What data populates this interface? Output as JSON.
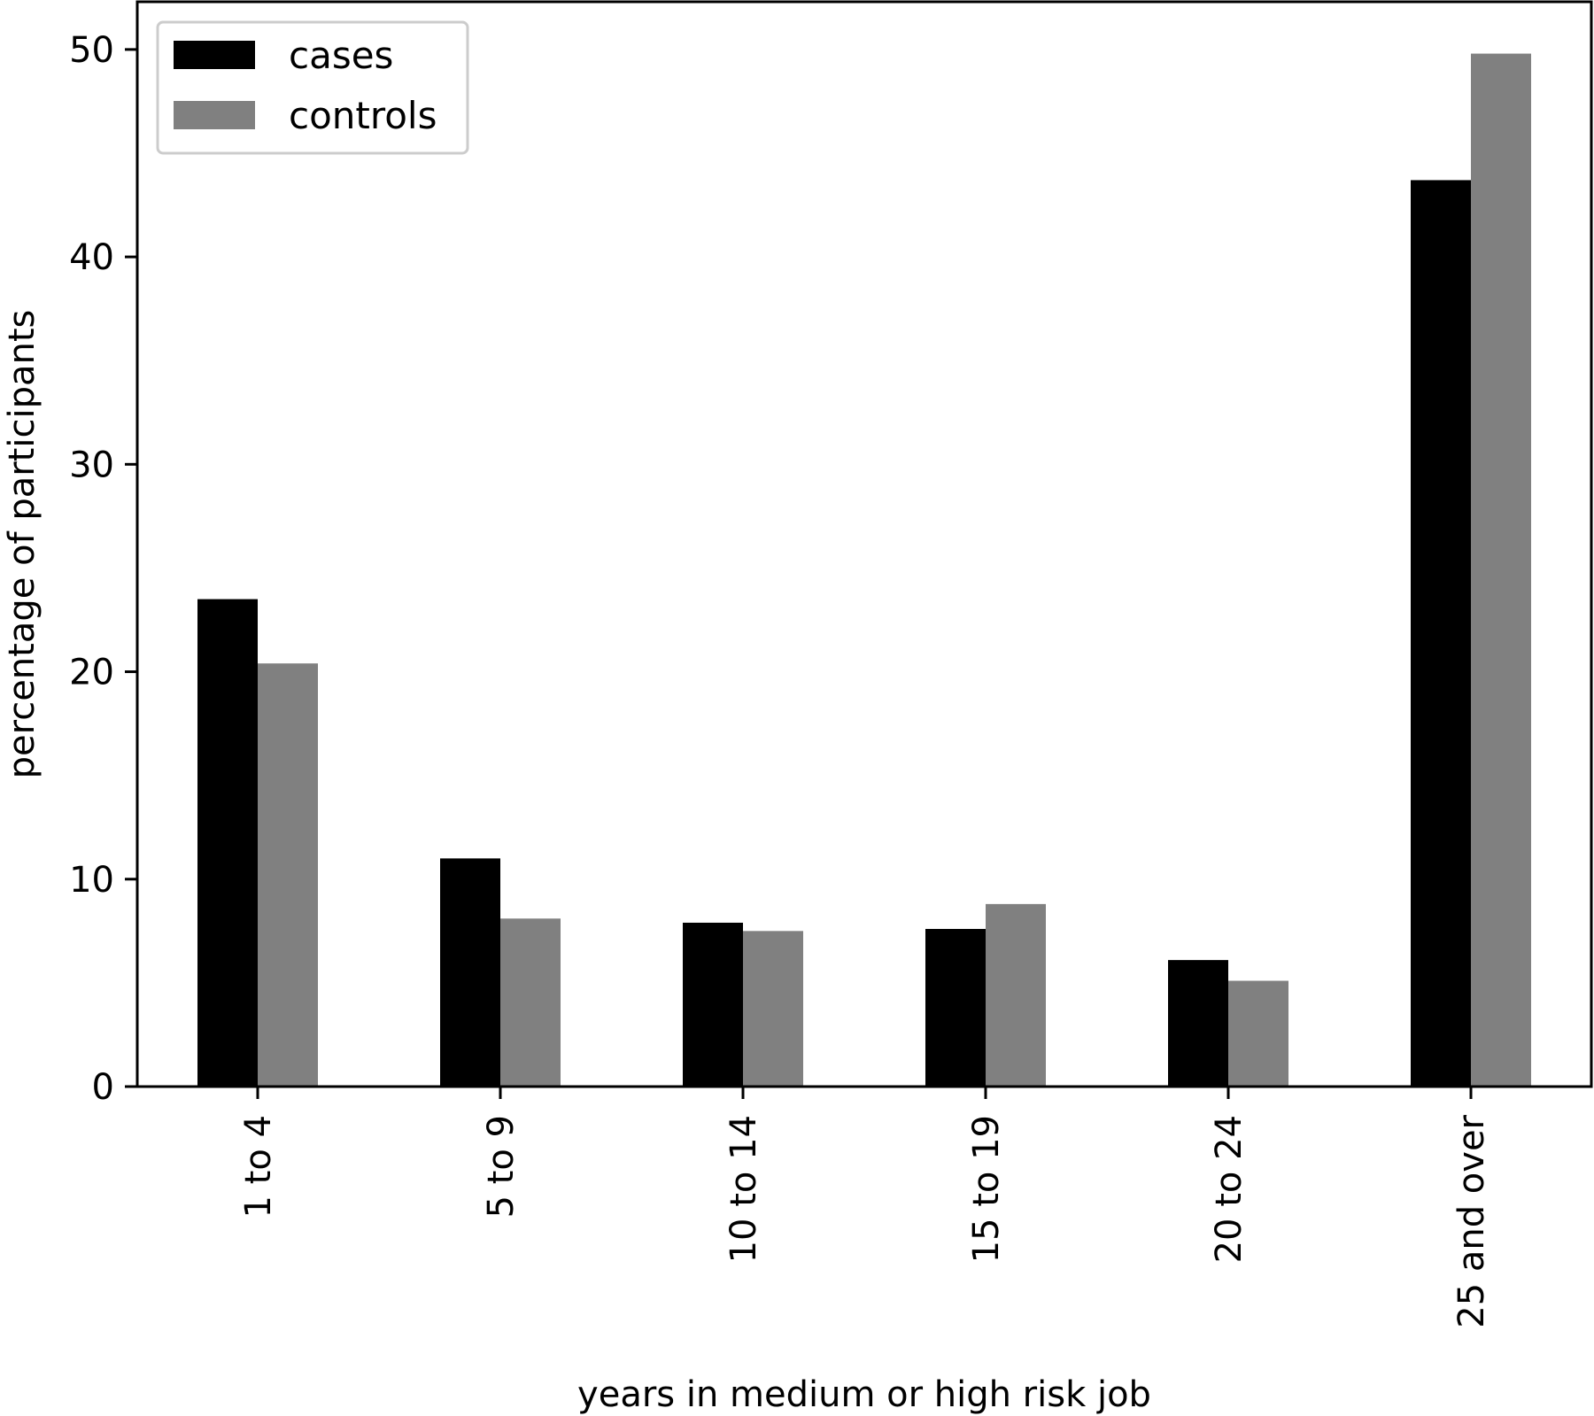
{
  "chart_data": {
    "type": "bar",
    "title": "",
    "xlabel": "years in medium or high risk job",
    "ylabel": "percentage of participants",
    "categories": [
      "1 to 4",
      "5 to 9",
      "10 to 14",
      "15 to 19",
      "20 to 24",
      "25 and over"
    ],
    "series": [
      {
        "name": "cases",
        "color": "#000000",
        "values": [
          23.5,
          11.0,
          7.9,
          7.6,
          6.1,
          43.7
        ]
      },
      {
        "name": "controls",
        "color": "#808080",
        "values": [
          20.4,
          8.1,
          7.5,
          8.8,
          5.1,
          49.8
        ]
      }
    ],
    "ylim": [
      0,
      52.3
    ],
    "yticks": [
      0,
      10,
      20,
      30,
      40,
      50
    ],
    "grid": false,
    "legend_position": "top-left"
  }
}
